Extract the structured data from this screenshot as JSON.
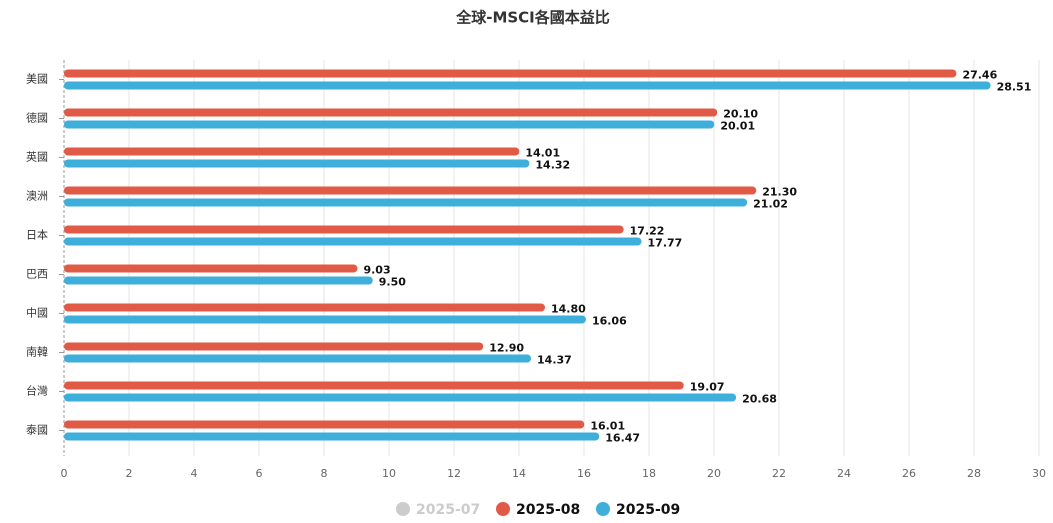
{
  "chart_data": {
    "type": "bar",
    "orientation": "horizontal",
    "title": "全球-MSCI各國本益比",
    "categories": [
      "美國",
      "德國",
      "英國",
      "澳洲",
      "日本",
      "巴西",
      "中國",
      "南韓",
      "台灣",
      "泰國"
    ],
    "series": [
      {
        "name": "2025-07",
        "color": "#cccccc",
        "hidden": true,
        "values": [
          null,
          null,
          null,
          null,
          null,
          null,
          null,
          null,
          null,
          null
        ]
      },
      {
        "name": "2025-08",
        "color": "#e15a45",
        "values": [
          27.46,
          20.1,
          14.01,
          21.3,
          17.22,
          9.03,
          14.8,
          12.9,
          19.07,
          16.01
        ],
        "value_labels": [
          "27.46",
          "20.10",
          "14.01",
          "21.30",
          "17.22",
          "9.03",
          "14.80",
          "12.90",
          "19.07",
          "16.01"
        ]
      },
      {
        "name": "2025-09",
        "color": "#3eaedb",
        "values": [
          28.51,
          20.01,
          14.32,
          21.02,
          17.77,
          9.5,
          16.06,
          14.37,
          20.68,
          16.47
        ],
        "value_labels": [
          "28.51",
          "20.01",
          "14.32",
          "21.02",
          "17.77",
          "9.50",
          "16.06",
          "14.37",
          "20.68",
          "16.47"
        ]
      }
    ],
    "xlim": [
      0,
      30
    ],
    "xticks": [
      0,
      2,
      4,
      6,
      8,
      10,
      12,
      14,
      16,
      18,
      20,
      22,
      24,
      26,
      28,
      30
    ],
    "grid": true,
    "legend": "bottom"
  }
}
